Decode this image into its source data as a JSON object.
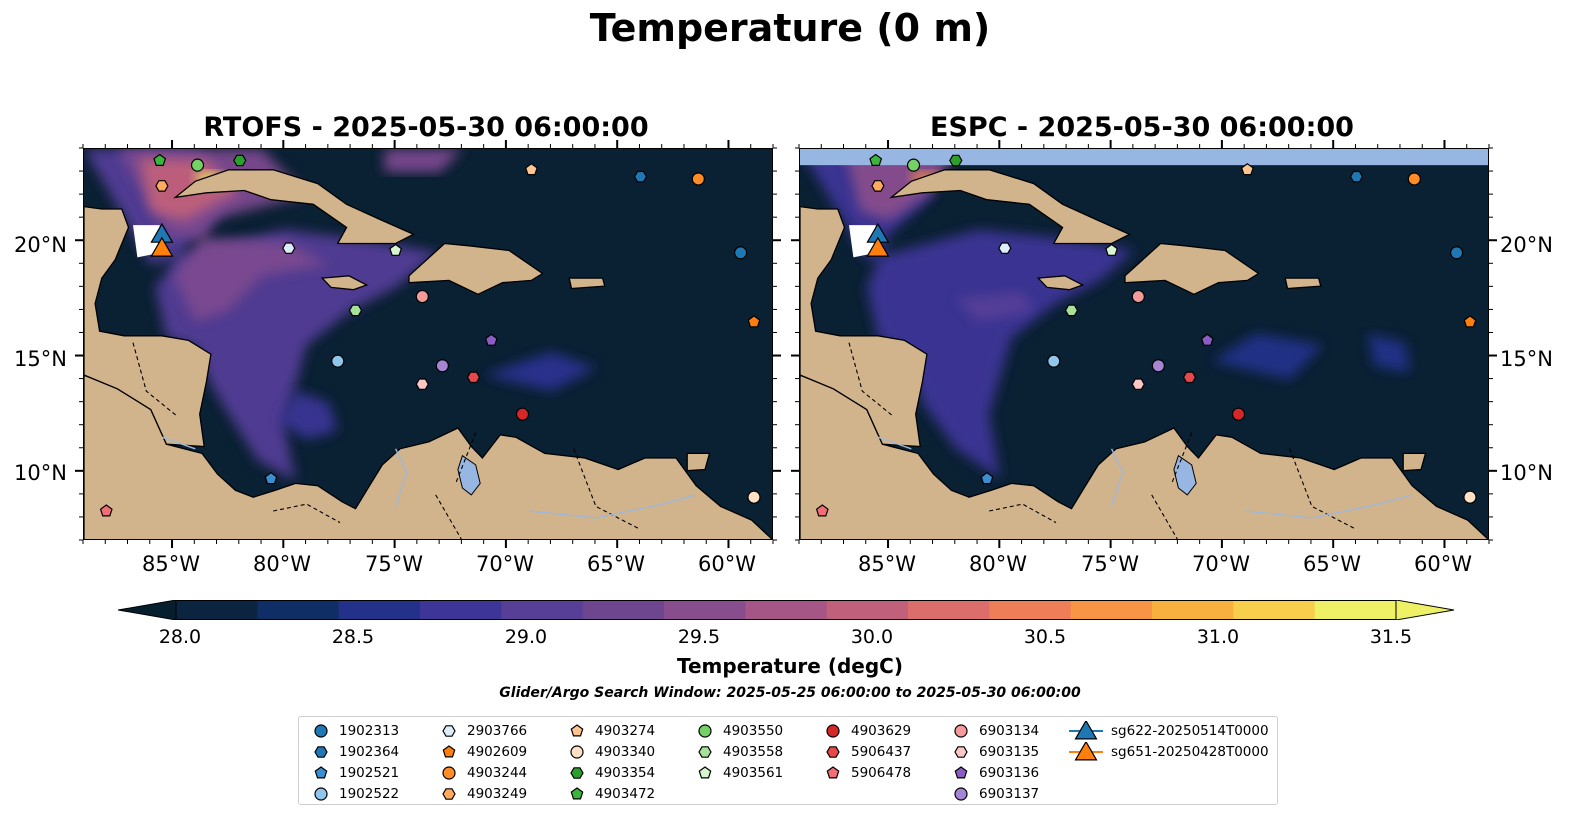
{
  "suptitle": "Temperature (0 m)",
  "panels": [
    {
      "id": "rtofs",
      "title": "RTOFS - 2025-05-30 06:00:00"
    },
    {
      "id": "espc",
      "title": "ESPC - 2025-05-30 06:00:00"
    }
  ],
  "map_extent": {
    "lon_min": -89,
    "lon_max": -58,
    "lat_min": 7,
    "lat_max": 24
  },
  "lon_ticks": [
    "85°W",
    "80°W",
    "75°W",
    "70°W",
    "65°W",
    "60°W"
  ],
  "lat_ticks": [
    "20°N",
    "15°N",
    "10°N"
  ],
  "colorbar": {
    "title": "Temperature (degC)",
    "min": 27.9,
    "max": 31.6,
    "ticks": [
      "28.0",
      "28.5",
      "29.0",
      "29.5",
      "30.0",
      "30.5",
      "31.0",
      "31.5"
    ],
    "colors": [
      "#0b2540",
      "#0f2e66",
      "#24318a",
      "#3d3597",
      "#573f98",
      "#6e4690",
      "#884d8c",
      "#a55586",
      "#c0607a",
      "#db6d6a",
      "#ee7e58",
      "#f89446",
      "#f9b03f",
      "#f7cf4c",
      "#eef165"
    ]
  },
  "land_color": "#d2b48c",
  "search_window": "Glider/Argo Search Window: 2025-05-25 06:00:00 to 2025-05-30 06:00:00",
  "legend": [
    {
      "label": "1902313",
      "marker": "circle",
      "color": "#1f77b4"
    },
    {
      "label": "1902364",
      "marker": "hexagon",
      "color": "#1f77b4"
    },
    {
      "label": "1902521",
      "marker": "pentagon",
      "color": "#3a8fd0"
    },
    {
      "label": "1902522",
      "marker": "circle",
      "color": "#8ec6ec"
    },
    {
      "label": "2903766",
      "marker": "hexagon",
      "color": "#dcecf8"
    },
    {
      "label": "4902609",
      "marker": "pentagon",
      "color": "#ff7f0e"
    },
    {
      "label": "4903244",
      "marker": "circle",
      "color": "#ff8c24"
    },
    {
      "label": "4903249",
      "marker": "hexagon",
      "color": "#ffaa60"
    },
    {
      "label": "4903274",
      "marker": "pentagon",
      "color": "#ffc58f"
    },
    {
      "label": "4903340",
      "marker": "circle",
      "color": "#ffe0c4"
    },
    {
      "label": "4903354",
      "marker": "hexagon",
      "color": "#2ca02c"
    },
    {
      "label": "4903472",
      "marker": "pentagon",
      "color": "#3cb53c"
    },
    {
      "label": "4903550",
      "marker": "circle",
      "color": "#74d166"
    },
    {
      "label": "4903558",
      "marker": "hexagon",
      "color": "#a6e29a"
    },
    {
      "label": "4903561",
      "marker": "pentagon",
      "color": "#d6f6cf"
    },
    {
      "label": "4903629",
      "marker": "circle",
      "color": "#d62728"
    },
    {
      "label": "5906437",
      "marker": "hexagon",
      "color": "#e8474a"
    },
    {
      "label": "5906478",
      "marker": "pentagon",
      "color": "#f26d75"
    },
    {
      "label": "6903134",
      "marker": "circle",
      "color": "#f59a9a"
    },
    {
      "label": "6903135",
      "marker": "hexagon",
      "color": "#fbc6c6"
    },
    {
      "label": "6903136",
      "marker": "pentagon",
      "color": "#8a5cc4"
    },
    {
      "label": "6903137",
      "marker": "circle",
      "color": "#a585d4"
    },
    {
      "label": "sg622-20250514T0000",
      "marker": "triangle",
      "color": "#1f77b4"
    },
    {
      "label": "sg651-20250428T0000",
      "marker": "triangle",
      "color": "#ff7f0e"
    }
  ],
  "floats": [
    {
      "id": "1902313",
      "lon": -59.5,
      "lat": 19.5
    },
    {
      "id": "1902364",
      "lon": -64.0,
      "lat": 22.8
    },
    {
      "id": "1902521",
      "lon": -80.6,
      "lat": 9.7
    },
    {
      "id": "1902522",
      "lon": -77.6,
      "lat": 14.8
    },
    {
      "id": "2903766",
      "lon": -79.8,
      "lat": 19.7
    },
    {
      "id": "4902609",
      "lon": -58.9,
      "lat": 16.5
    },
    {
      "id": "4903244",
      "lon": -61.4,
      "lat": 22.7
    },
    {
      "id": "4903249",
      "lon": -85.5,
      "lat": 22.4
    },
    {
      "id": "4903274",
      "lon": -68.9,
      "lat": 23.1
    },
    {
      "id": "4903340",
      "lon": -58.9,
      "lat": 8.9
    },
    {
      "id": "4903354",
      "lon": -82.0,
      "lat": 23.5
    },
    {
      "id": "4903472",
      "lon": -85.6,
      "lat": 23.5
    },
    {
      "id": "4903550",
      "lon": -83.9,
      "lat": 23.3
    },
    {
      "id": "4903558",
      "lon": -76.8,
      "lat": 17.0
    },
    {
      "id": "4903561",
      "lon": -75.0,
      "lat": 19.6
    },
    {
      "id": "4903629",
      "lon": -69.3,
      "lat": 12.5
    },
    {
      "id": "5906437",
      "lon": -71.5,
      "lat": 14.1
    },
    {
      "id": "5906478",
      "lon": -88.0,
      "lat": 8.3
    },
    {
      "id": "6903134",
      "lon": -73.8,
      "lat": 17.6
    },
    {
      "id": "6903135",
      "lon": -73.8,
      "lat": 13.8
    },
    {
      "id": "6903136",
      "lon": -70.7,
      "lat": 15.7
    },
    {
      "id": "6903137",
      "lon": -72.9,
      "lat": 14.6
    },
    {
      "id": "sg622-20250514T0000",
      "lon": -85.5,
      "lat": 20.3
    },
    {
      "id": "sg651-20250428T0000",
      "lon": -85.5,
      "lat": 19.7
    }
  ]
}
